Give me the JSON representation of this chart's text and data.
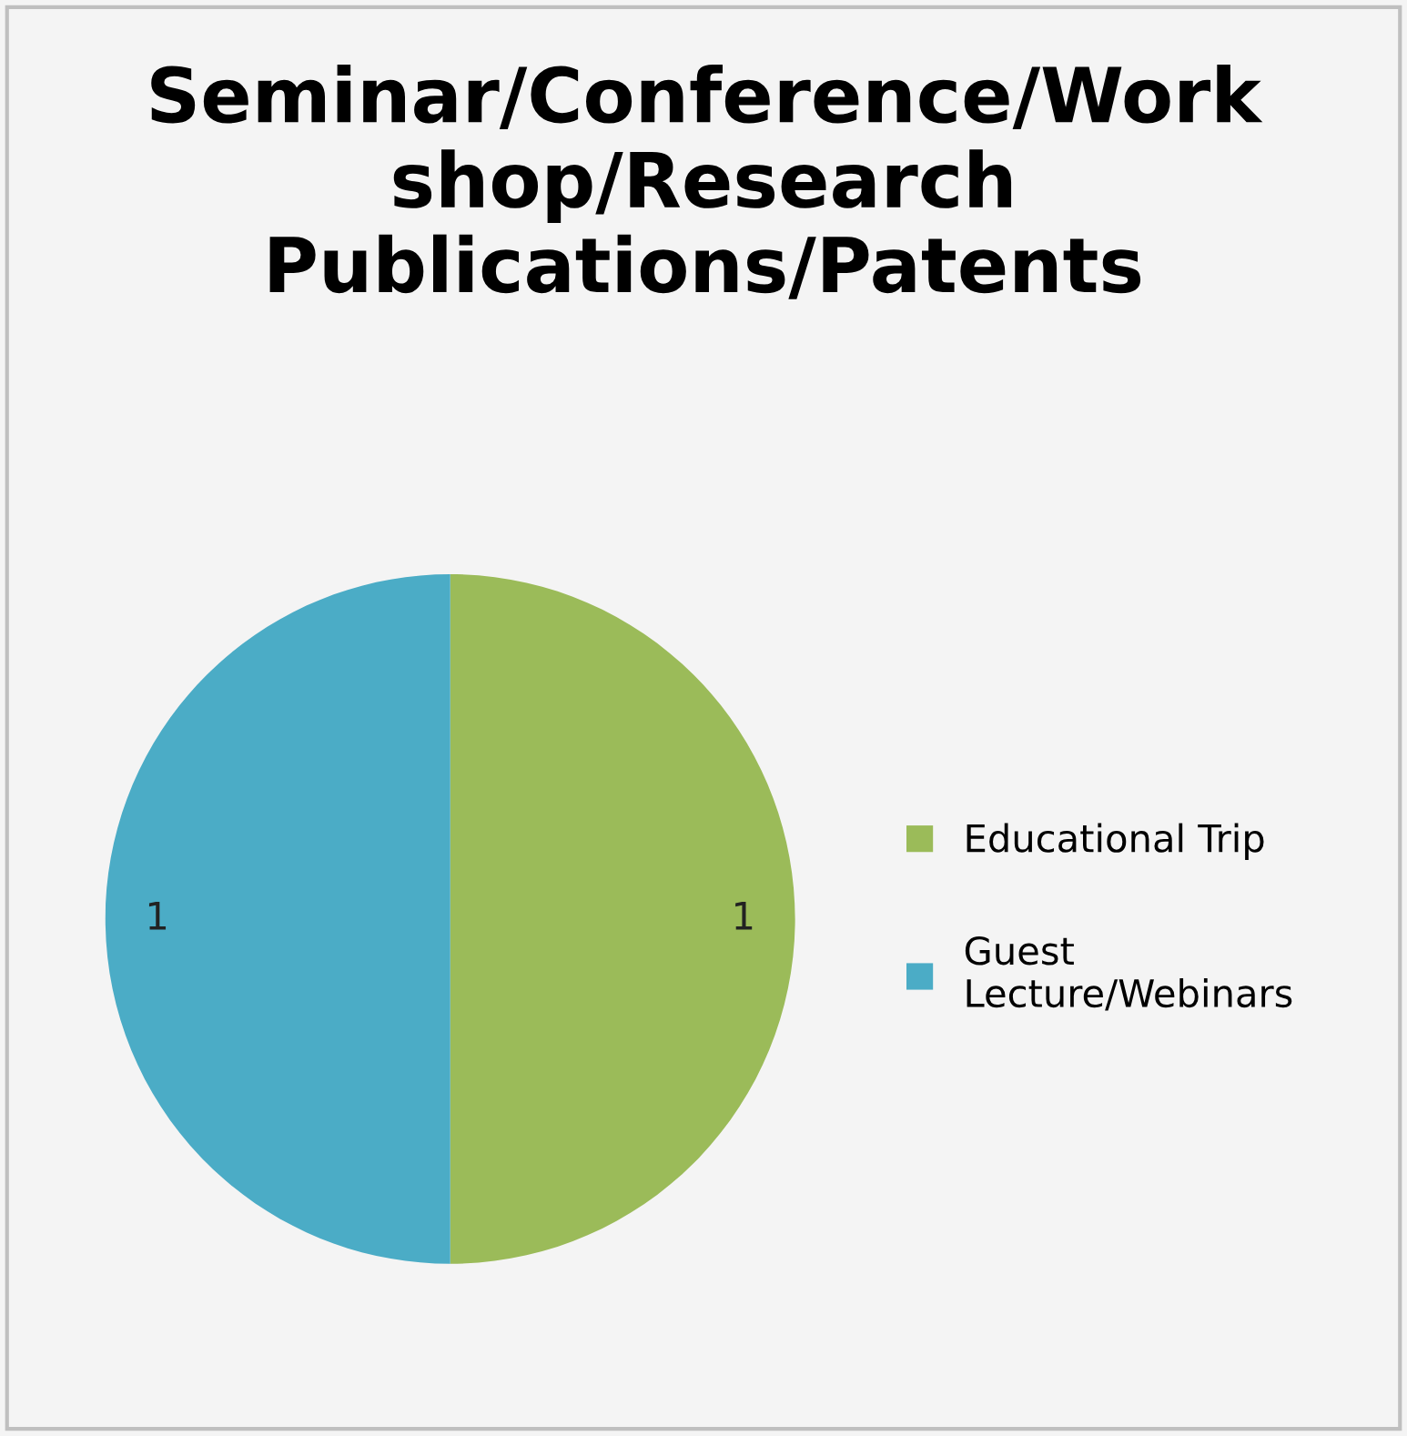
{
  "chart_data": {
    "type": "pie",
    "title": "Seminar/Conference/Work\nshop/Research\nPublications/Patents",
    "categories": [
      "Educational Trip",
      "Guest\nLecture/Webinars"
    ],
    "values": [
      1,
      1
    ],
    "colors": [
      "#9bbb59",
      "#4bacc6"
    ],
    "data_labels": true,
    "legend": "right"
  }
}
